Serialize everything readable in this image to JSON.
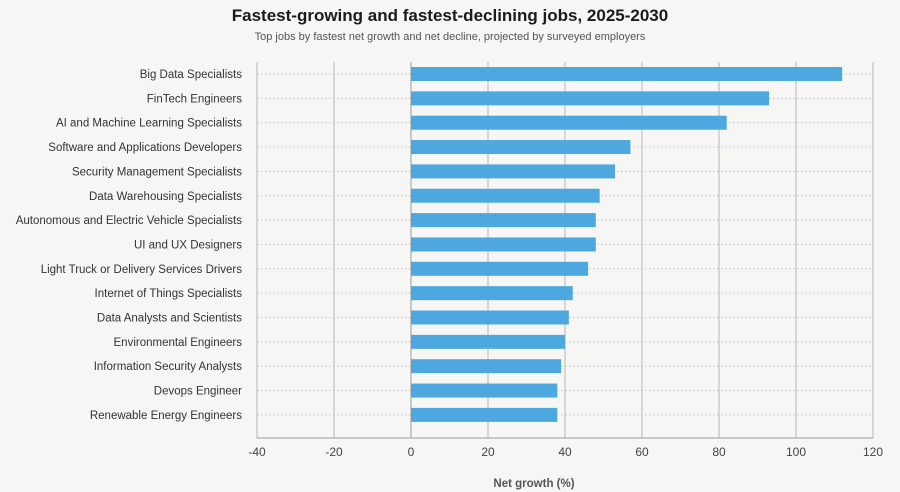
{
  "chart_data": {
    "type": "bar",
    "orientation": "horizontal",
    "title": "Fastest-growing and fastest-declining jobs, 2025-2030",
    "subtitle": "Top jobs by fastest net growth and net decline, projected by surveyed employers",
    "xlabel": "Net growth (%)",
    "ylabel": "",
    "xlim": [
      -40,
      120
    ],
    "xticks": [
      -40,
      -20,
      0,
      20,
      40,
      60,
      80,
      100,
      120
    ],
    "grid": "vertical",
    "categories": [
      "Big Data Specialists",
      "FinTech Engineers",
      "AI and Machine Learning Specialists",
      "Software and Applications Developers",
      "Security Management Specialists",
      "Data Warehousing Specialists",
      "Autonomous and Electric Vehicle Specialists",
      "UI and UX Designers",
      "Light Truck or Delivery Services Drivers",
      "Internet of Things Specialists",
      "Data Analysts and Scientists",
      "Environmental Engineers",
      "Information Security Analysts",
      "Devops Engineer",
      "Renewable Energy Engineers"
    ],
    "values": [
      112,
      93,
      82,
      57,
      53,
      49,
      48,
      48,
      46,
      42,
      41,
      40,
      39,
      38,
      38
    ],
    "bar_color": "#4da8df"
  }
}
